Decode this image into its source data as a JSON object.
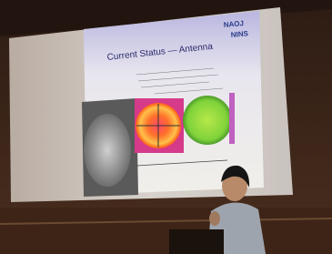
{
  "slide": {
    "title": "Current Status — Antenna",
    "logo": [
      "NAOJ",
      "NINS"
    ]
  }
}
